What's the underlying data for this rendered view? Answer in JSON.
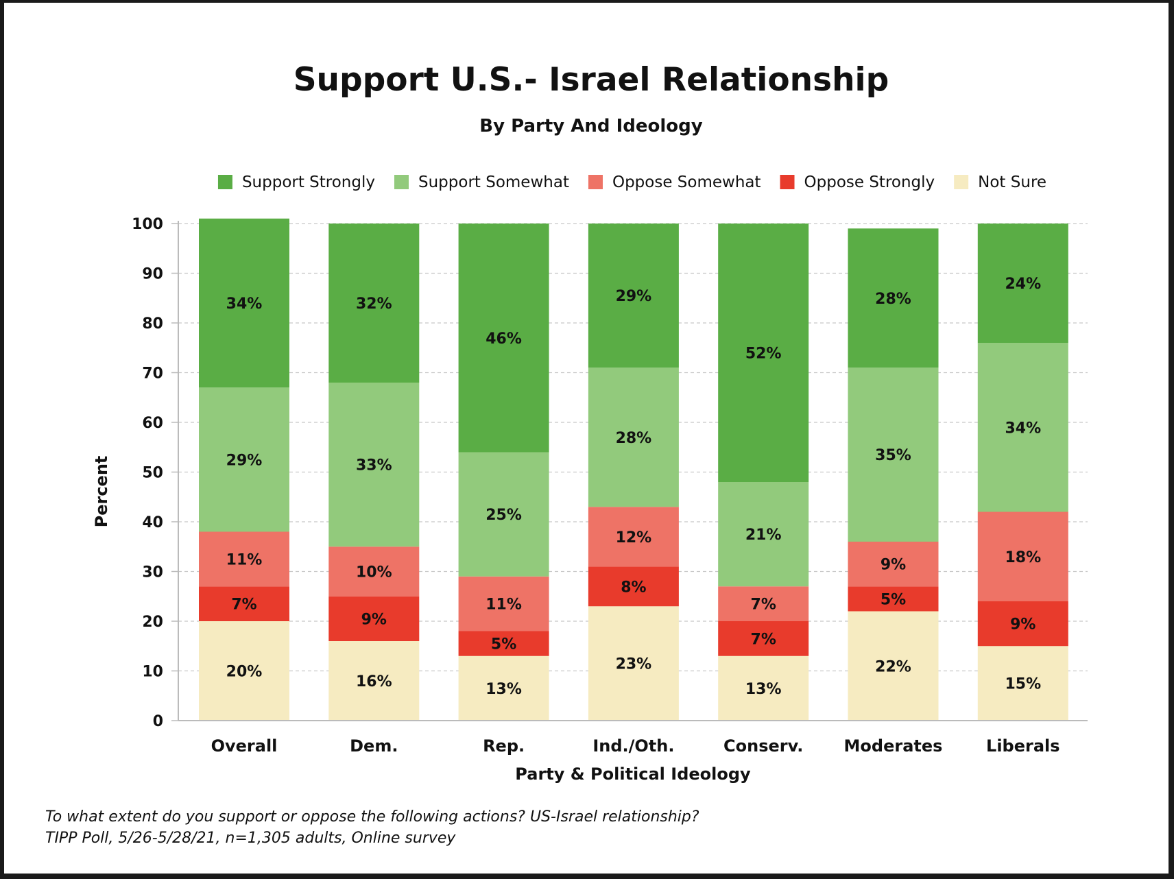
{
  "chart_data": {
    "type": "bar",
    "stacked": true,
    "title": "Support U.S.- Israel Relationship",
    "subtitle": "By Party And Ideology",
    "xlabel": "Party & Political Ideology",
    "ylabel": "Percent",
    "ylim": [
      0,
      100
    ],
    "yticks": [
      0,
      10,
      20,
      30,
      40,
      50,
      60,
      70,
      80,
      90,
      100
    ],
    "grid": true,
    "legend_position": "top",
    "categories": [
      "Overall",
      "Dem.",
      "Rep.",
      "Ind./Oth.",
      "Conserv.",
      "Moderates",
      "Liberals"
    ],
    "series": [
      {
        "name": "Not Sure",
        "color": "#f6ebc1",
        "values": [
          20,
          16,
          13,
          23,
          13,
          22,
          15
        ],
        "labels": [
          "20%",
          "16%",
          "13%",
          "23%",
          "13%",
          "22%",
          "15%"
        ]
      },
      {
        "name": "Oppose Strongly",
        "color": "#e83b2c",
        "values": [
          7,
          9,
          5,
          8,
          7,
          5,
          9
        ],
        "labels": [
          "7%",
          "9%",
          "5%",
          "8%",
          "7%",
          "5%",
          "9%"
        ]
      },
      {
        "name": "Oppose Somewhat",
        "color": "#ee7366",
        "values": [
          11,
          10,
          11,
          12,
          7,
          9,
          18
        ],
        "labels": [
          "11%",
          "10%",
          "11%",
          "12%",
          "7%",
          "9%",
          "18%"
        ]
      },
      {
        "name": "Support Somewhat",
        "color": "#92ca7c",
        "values": [
          29,
          33,
          25,
          28,
          21,
          35,
          34
        ],
        "labels": [
          "29%",
          "33%",
          "25%",
          "28%",
          "21%",
          "35%",
          "34%"
        ]
      },
      {
        "name": "Support Strongly",
        "color": "#5aad45",
        "values": [
          34,
          32,
          46,
          29,
          52,
          28,
          24
        ],
        "labels": [
          "34%",
          "32%",
          "46%",
          "29%",
          "52%",
          "28%",
          "24%"
        ]
      }
    ],
    "legend_order": [
      "Support Strongly",
      "Support Somewhat",
      "Oppose Somewhat",
      "Oppose Strongly",
      "Not Sure"
    ]
  },
  "footnote": {
    "line1": "To what extent do you support or oppose the following actions? US-Israel relationship?",
    "line2": "TIPP Poll, 5/26-5/28/21, n=1,305 adults, Online survey"
  }
}
